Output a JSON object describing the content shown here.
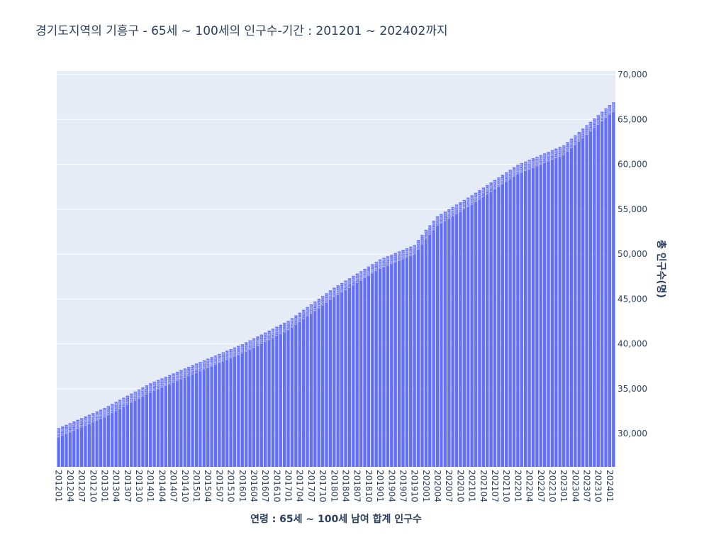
{
  "chart_data": {
    "type": "bar",
    "title": "경기도지역의 기흥구 - 65세 ~ 100세의 인구수-기간 : 201201 ~ 202402까지",
    "x_label": "연령 : 65세 ~ 100세 남여 합계 인구수",
    "y_label": "총 인구수(명)",
    "color": "#636efa",
    "grid": true,
    "categories": [
      "201201",
      "201202",
      "201203",
      "201204",
      "201205",
      "201206",
      "201207",
      "201208",
      "201209",
      "201210",
      "201211",
      "201212",
      "201301",
      "201302",
      "201303",
      "201304",
      "201305",
      "201306",
      "201307",
      "201308",
      "201309",
      "201310",
      "201311",
      "201312",
      "201401",
      "201402",
      "201403",
      "201404",
      "201405",
      "201406",
      "201407",
      "201408",
      "201409",
      "201410",
      "201411",
      "201412",
      "201501",
      "201502",
      "201503",
      "201504",
      "201505",
      "201506",
      "201507",
      "201508",
      "201509",
      "201510",
      "201511",
      "201512",
      "201601",
      "201602",
      "201603",
      "201604",
      "201605",
      "201606",
      "201607",
      "201608",
      "201609",
      "201610",
      "201611",
      "201612",
      "201701",
      "201702",
      "201703",
      "201704",
      "201705",
      "201706",
      "201707",
      "201708",
      "201709",
      "201710",
      "201711",
      "201712",
      "201801",
      "201802",
      "201803",
      "201804",
      "201805",
      "201806",
      "201807",
      "201808",
      "201809",
      "201810",
      "201811",
      "201812",
      "201901",
      "201902",
      "201903",
      "201904",
      "201905",
      "201906",
      "201907",
      "201908",
      "201909",
      "201910",
      "201911",
      "201912",
      "202001",
      "202002",
      "202003",
      "202004",
      "202005",
      "202006",
      "202007",
      "202008",
      "202009",
      "202010",
      "202011",
      "202012",
      "202101",
      "202102",
      "202103",
      "202104",
      "202105",
      "202106",
      "202107",
      "202108",
      "202109",
      "202110",
      "202111",
      "202112",
      "202201",
      "202202",
      "202203",
      "202204",
      "202205",
      "202206",
      "202207",
      "202208",
      "202209",
      "202210",
      "202211",
      "202212",
      "202301",
      "202302",
      "202303",
      "202304",
      "202305",
      "202306",
      "202307",
      "202308",
      "202309",
      "202310",
      "202311",
      "202312",
      "202401",
      "202402"
    ],
    "values": [
      30600,
      30787,
      30973,
      31160,
      31347,
      31533,
      31720,
      31907,
      32093,
      32280,
      32467,
      32653,
      32840,
      33070,
      33300,
      33530,
      33760,
      33990,
      34220,
      34450,
      34680,
      34910,
      35140,
      35370,
      35600,
      35783,
      35967,
      36150,
      36333,
      36517,
      36700,
      36883,
      37067,
      37250,
      37433,
      37617,
      37800,
      37979,
      38158,
      38338,
      38517,
      38696,
      38875,
      39054,
      39233,
      39413,
      39592,
      39771,
      39950,
      40167,
      40383,
      40600,
      40817,
      41033,
      41250,
      41467,
      41683,
      41900,
      42117,
      42333,
      42550,
      42858,
      43167,
      43475,
      43783,
      44092,
      44400,
      44708,
      45017,
      45325,
      45633,
      45942,
      46250,
      46513,
      46775,
      47038,
      47300,
      47563,
      47825,
      48088,
      48350,
      48613,
      48875,
      49138,
      49400,
      49578,
      49756,
      49933,
      50111,
      50289,
      50467,
      50644,
      50822,
      51000,
      51567,
      52133,
      52700,
      53200,
      53700,
      54200,
      54461,
      54722,
      54983,
      55244,
      55506,
      55767,
      56028,
      56289,
      56550,
      56833,
      57117,
      57400,
      57683,
      57967,
      58250,
      58533,
      58817,
      59100,
      59383,
      59667,
      59950,
      60129,
      60308,
      60488,
      60667,
      60846,
      61025,
      61204,
      61383,
      61563,
      61742,
      61921,
      62100,
      62475,
      62850,
      63225,
      63600,
      63975,
      64350,
      64725,
      65100,
      65475,
      65850,
      66225,
      66600,
      66900
    ],
    "ylim": [
      26290,
      70400
    ],
    "yticks": [
      {
        "value": 30000,
        "label": "30,000"
      },
      {
        "value": 35000,
        "label": "35,000"
      },
      {
        "value": 40000,
        "label": "40,000"
      },
      {
        "value": 45000,
        "label": "45,000"
      },
      {
        "value": 50000,
        "label": "50,000"
      },
      {
        "value": 55000,
        "label": "55,000"
      },
      {
        "value": 60000,
        "label": "60,000"
      },
      {
        "value": 65000,
        "label": "65,000"
      },
      {
        "value": 70000,
        "label": "70,000"
      }
    ]
  }
}
